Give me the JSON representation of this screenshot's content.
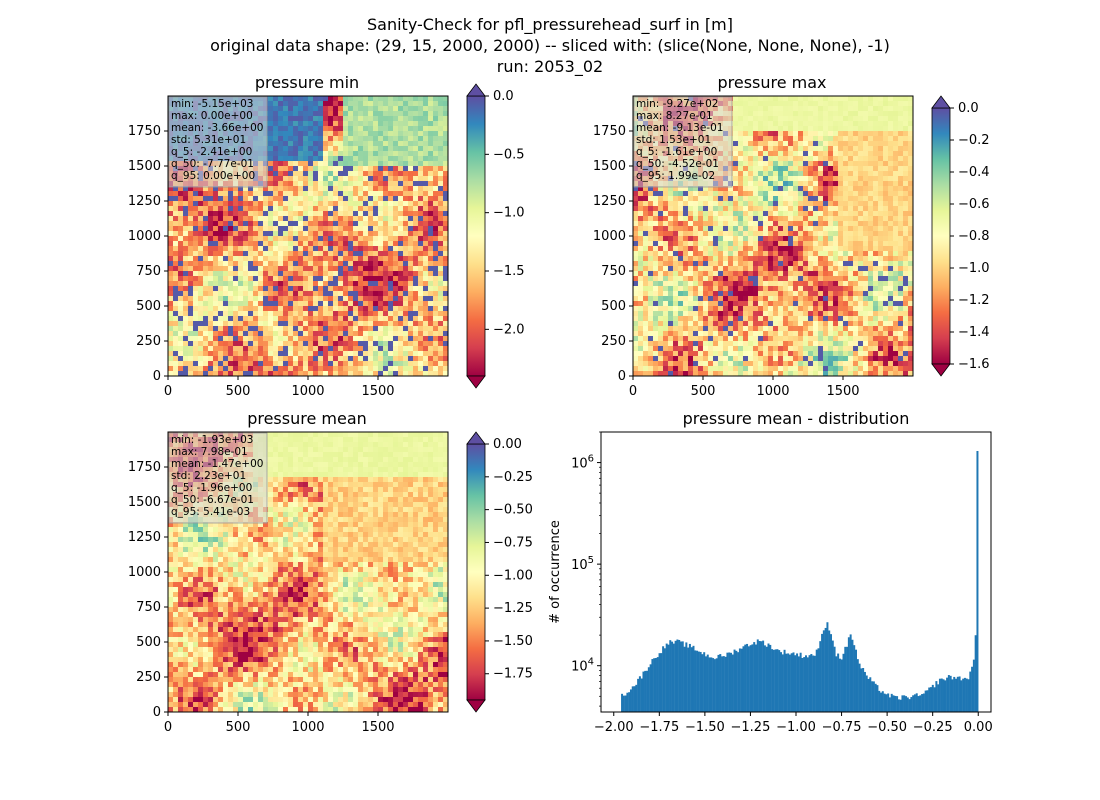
{
  "figure": {
    "title_lines": [
      "Sanity-Check for pfl_pressurehead_surf in [m]",
      "original data shape: (29, 15, 2000, 2000) -- sliced with: (slice(None, None, None), -1)",
      "run: 2053_02"
    ]
  },
  "colors": {
    "spectral": [
      "#9e0142",
      "#d53e4f",
      "#f46d43",
      "#fdae61",
      "#fee08b",
      "#ffffbf",
      "#e6f598",
      "#abdda4",
      "#66c2a5",
      "#3288bd",
      "#5e4fa2"
    ],
    "hist_bar": "#1f77b4",
    "stats_box": "#d3d3d3"
  },
  "chart_data": [
    {
      "type": "heatmap",
      "title": "pressure min",
      "x_ticks": [
        "0",
        "500",
        "1000",
        "1500"
      ],
      "y_ticks": [
        "0",
        "250",
        "500",
        "750",
        "1000",
        "1250",
        "1500",
        "1750"
      ],
      "x_range": [
        0,
        2000
      ],
      "y_range": [
        0,
        2000
      ],
      "colormap": "Spectral",
      "colorbar": {
        "range": [
          -2.4,
          0.0
        ],
        "ticks": [
          "0.0",
          "−0.5",
          "−1.0",
          "−1.5",
          "−2.0"
        ],
        "extend": "both"
      },
      "stats": [
        "min: -5.15e+03",
        "max: 0.00e+00",
        "mean: -3.66e+00",
        "std: 5.31e+01",
        "q_5: -2.41e+00",
        "q_50: -7.77e-01",
        "q_95: 0.00e+00"
      ]
    },
    {
      "type": "heatmap",
      "title": "pressure max",
      "x_ticks": [
        "0",
        "500",
        "1000",
        "1500"
      ],
      "y_ticks": [
        "0",
        "250",
        "500",
        "750",
        "1000",
        "1250",
        "1500",
        "1750"
      ],
      "x_range": [
        0,
        2000
      ],
      "y_range": [
        0,
        2000
      ],
      "colormap": "Spectral",
      "colorbar": {
        "range": [
          -1.6,
          0.0
        ],
        "ticks": [
          "0.0",
          "−0.2",
          "−0.4",
          "−0.6",
          "−0.8",
          "−1.0",
          "−1.2",
          "−1.4",
          "−1.6"
        ],
        "extend": "both"
      },
      "stats": [
        "min: -9.27e+02",
        "max: 8.27e-01",
        "mean: -9.13e-01",
        "std: 1.53e+01",
        "q_5: -1.61e+00",
        "q_50: -4.52e-01",
        "q_95: 1.99e-02"
      ]
    },
    {
      "type": "heatmap",
      "title": "pressure mean",
      "x_ticks": [
        "0",
        "500",
        "1000",
        "1500"
      ],
      "y_ticks": [
        "0",
        "250",
        "500",
        "750",
        "1000",
        "1250",
        "1500",
        "1750"
      ],
      "x_range": [
        0,
        2000
      ],
      "y_range": [
        0,
        2000
      ],
      "colormap": "Spectral",
      "colorbar": {
        "range": [
          -1.95,
          0.0
        ],
        "ticks": [
          "0.00",
          "−0.25",
          "−0.50",
          "−0.75",
          "−1.00",
          "−1.25",
          "−1.50",
          "−1.75"
        ],
        "extend": "both"
      },
      "stats": [
        "min: -1.93e+03",
        "max: 7.98e-01",
        "mean: -1.47e+00",
        "std: 2.23e+01",
        "q_5: -1.96e+00",
        "q_50: -6.67e-01",
        "q_95: 5.41e-03"
      ]
    },
    {
      "type": "bar",
      "title": "pressure mean - distribution",
      "ylabel": "# of occurrence",
      "xlabel": "",
      "yscale": "log",
      "xlim": [
        -2.07,
        0.07
      ],
      "ylim": [
        3500,
        2000000
      ],
      "x_ticks": [
        "−2.00",
        "−1.75",
        "−1.50",
        "−1.25",
        "−1.00",
        "−0.75",
        "−0.50",
        "−0.25",
        "0.00"
      ],
      "y_ticks": [
        "10^4",
        "10^5",
        "10^6"
      ],
      "bin_range": [
        -1.96,
        0.0
      ],
      "anchors": [
        [
          -1.96,
          5000
        ],
        [
          -1.9,
          6000
        ],
        [
          -1.85,
          7800
        ],
        [
          -1.8,
          10500
        ],
        [
          -1.75,
          13500
        ],
        [
          -1.7,
          16800
        ],
        [
          -1.65,
          17200
        ],
        [
          -1.6,
          16000
        ],
        [
          -1.55,
          14500
        ],
        [
          -1.5,
          13000
        ],
        [
          -1.45,
          12000
        ],
        [
          -1.4,
          12500
        ],
        [
          -1.35,
          13500
        ],
        [
          -1.3,
          15000
        ],
        [
          -1.25,
          16500
        ],
        [
          -1.2,
          17500
        ],
        [
          -1.15,
          16000
        ],
        [
          -1.1,
          14000
        ],
        [
          -1.05,
          13500
        ],
        [
          -1.0,
          13000
        ],
        [
          -0.95,
          12500
        ],
        [
          -0.9,
          12800
        ],
        [
          -0.87,
          16000
        ],
        [
          -0.85,
          22000
        ],
        [
          -0.83,
          26000
        ],
        [
          -0.81,
          22000
        ],
        [
          -0.78,
          13000
        ],
        [
          -0.75,
          12000
        ],
        [
          -0.72,
          16000
        ],
        [
          -0.7,
          21000
        ],
        [
          -0.68,
          16000
        ],
        [
          -0.65,
          10000
        ],
        [
          -0.6,
          7500
        ],
        [
          -0.55,
          6000
        ],
        [
          -0.5,
          5200
        ],
        [
          -0.45,
          4800
        ],
        [
          -0.4,
          4900
        ],
        [
          -0.35,
          5000
        ],
        [
          -0.3,
          5200
        ],
        [
          -0.27,
          5800
        ],
        [
          -0.24,
          6500
        ],
        [
          -0.21,
          7200
        ],
        [
          -0.18,
          7500
        ],
        [
          -0.15,
          7800
        ],
        [
          -0.12,
          7600
        ],
        [
          -0.09,
          7500
        ],
        [
          -0.06,
          7500
        ],
        [
          -0.04,
          8500
        ],
        [
          -0.025,
          11000
        ],
        [
          -0.01,
          25000
        ],
        [
          0.0,
          1300000
        ]
      ]
    }
  ]
}
